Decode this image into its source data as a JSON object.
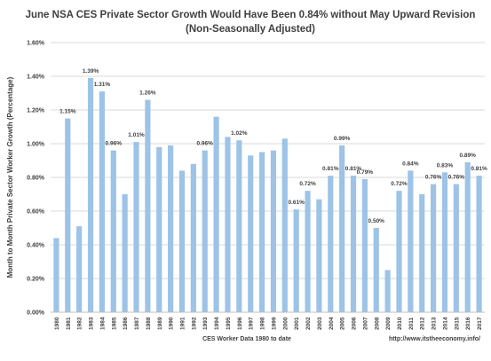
{
  "chart_data": {
    "type": "bar",
    "title": "June  NSA CES Private Sector Growth Would Have Been 0.84% without May Upward Revision",
    "subtitle": "(Non-Seasonally Adjusted)",
    "xlabel": "CES Worker Data 1980 to date",
    "ylabel": "Month to Month Private Sector Worker Growth (Percentage)",
    "source": "http://www.itstheeconomy.info/",
    "ylim": [
      0,
      1.6
    ],
    "yticks": [
      "0.00%",
      "0.20%",
      "0.40%",
      "0.60%",
      "0.80%",
      "1.00%",
      "1.20%",
      "1.40%",
      "1.60%"
    ],
    "grid": true,
    "bar_color": "#9DC3E6",
    "categories": [
      "1980",
      "1981",
      "1982",
      "1983",
      "1984",
      "1985",
      "1986",
      "1987",
      "1988",
      "1989",
      "1990",
      "1991",
      "1992",
      "1993",
      "1994",
      "1995",
      "1996",
      "1997",
      "1998",
      "1999",
      "2000",
      "2001",
      "2002",
      "2003",
      "2004",
      "2005",
      "2006",
      "2007",
      "2008",
      "2009",
      "2010",
      "2011",
      "2012",
      "2013",
      "2014",
      "2015",
      "2016",
      "2017"
    ],
    "values": [
      0.44,
      1.15,
      0.51,
      1.39,
      1.31,
      0.96,
      0.7,
      1.01,
      1.26,
      0.98,
      0.99,
      0.84,
      0.88,
      0.96,
      1.16,
      1.04,
      1.02,
      0.93,
      0.95,
      0.96,
      1.03,
      0.61,
      0.72,
      0.67,
      0.81,
      0.99,
      0.81,
      0.79,
      0.5,
      0.25,
      0.72,
      0.84,
      0.7,
      0.76,
      0.83,
      0.76,
      0.89,
      0.81
    ],
    "data_labels": [
      "",
      "1.15%",
      "",
      "1.39%",
      "1.31%",
      "0.96%",
      "",
      "1.01%",
      "1.26%",
      "",
      "",
      "",
      "",
      "0.96%",
      "",
      "",
      "1.02%",
      "",
      "",
      "",
      "",
      "0.61%",
      "0.72%",
      "",
      "0.81%",
      "0.99%",
      "0.81%",
      "0.79%",
      "0.50%",
      "",
      "0.72%",
      "0.84%",
      "",
      "0.76%",
      "0.83%",
      "0.76%",
      "0.89%",
      "0.81%"
    ]
  }
}
